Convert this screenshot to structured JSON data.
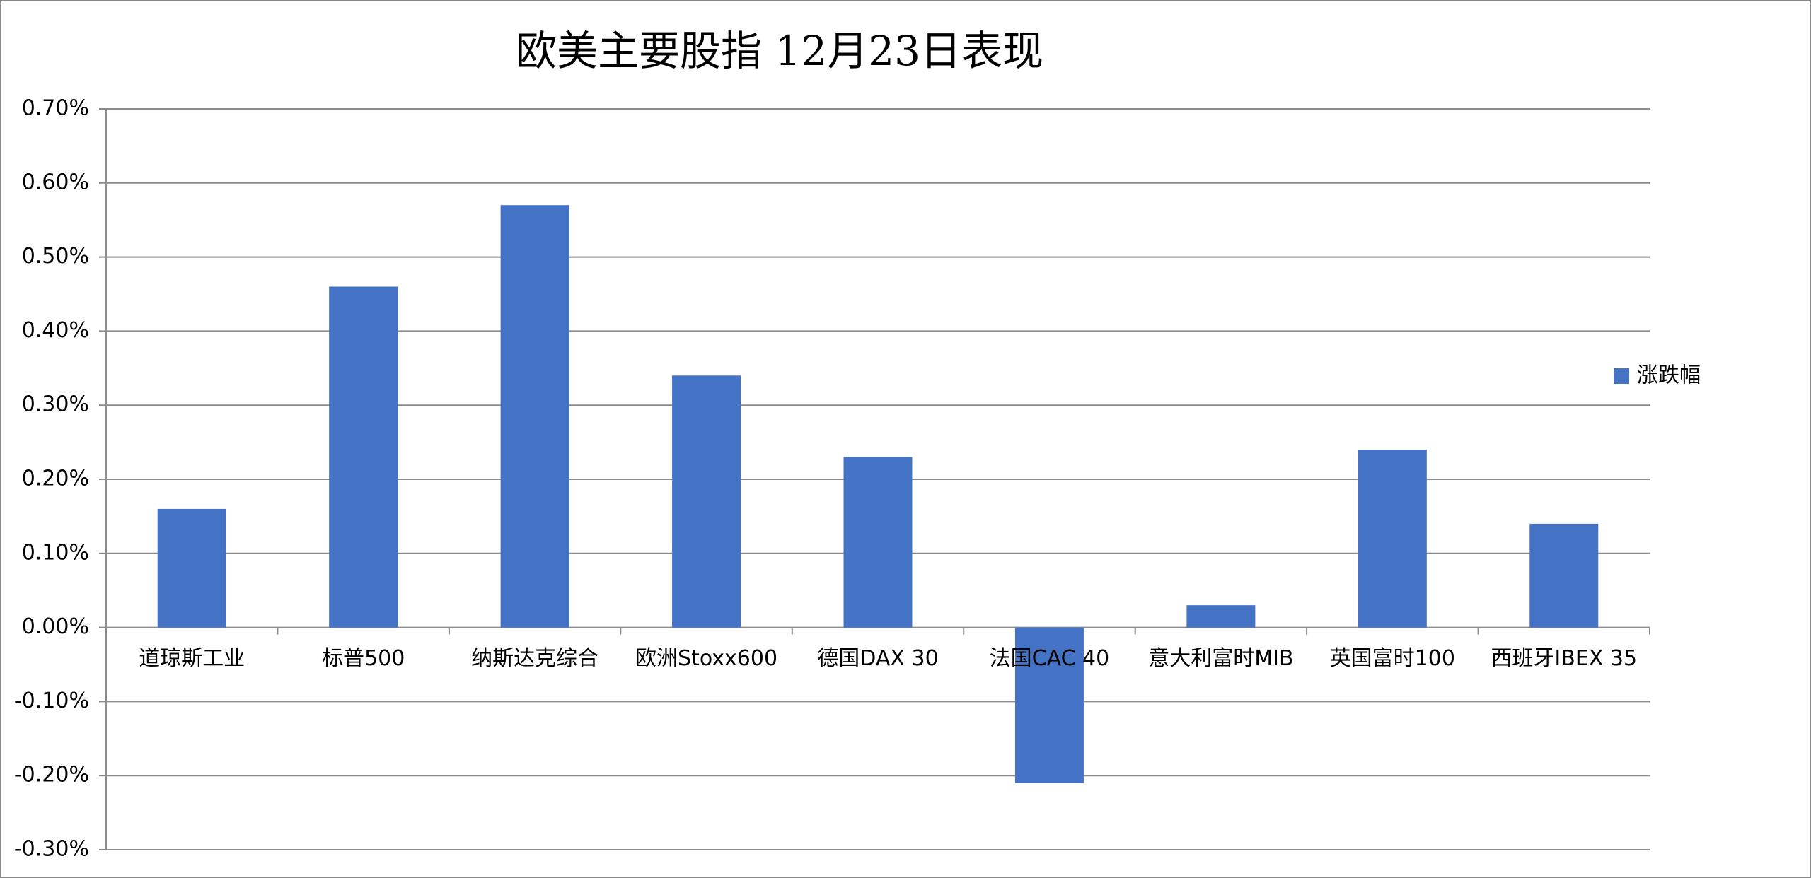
{
  "chart_data": {
    "type": "bar",
    "title": "欧美主要股指   12月23日表现",
    "categories": [
      "道琼斯工业",
      "标普500",
      "纳斯达克综合",
      "欧洲Stoxx600",
      "德国DAX 30",
      "法国CAC 40",
      "意大利富时MIB",
      "英国富时100",
      "西班牙IBEX 35"
    ],
    "series": [
      {
        "name": "涨跌幅",
        "color": "#4472c4",
        "values": [
          0.16,
          0.46,
          0.57,
          0.34,
          0.23,
          -0.21,
          0.03,
          0.24,
          0.14
        ]
      }
    ],
    "ylim": [
      -0.3,
      0.7
    ],
    "yticks": [
      {
        "value": -0.3,
        "label": "-0.30%"
      },
      {
        "value": -0.2,
        "label": "-0.20%"
      },
      {
        "value": -0.1,
        "label": "-0.10%"
      },
      {
        "value": 0,
        "label": "0.00%"
      },
      {
        "value": 0.1,
        "label": "0.10%"
      },
      {
        "value": 0.2,
        "label": "0.20%"
      },
      {
        "value": 0.3,
        "label": "0.30%"
      },
      {
        "value": 0.4,
        "label": "0.40%"
      },
      {
        "value": 0.5,
        "label": "0.50%"
      },
      {
        "value": 0.6,
        "label": "0.60%"
      },
      {
        "value": 0.7,
        "label": "0.70%"
      }
    ],
    "grid": true,
    "legend": "right"
  }
}
